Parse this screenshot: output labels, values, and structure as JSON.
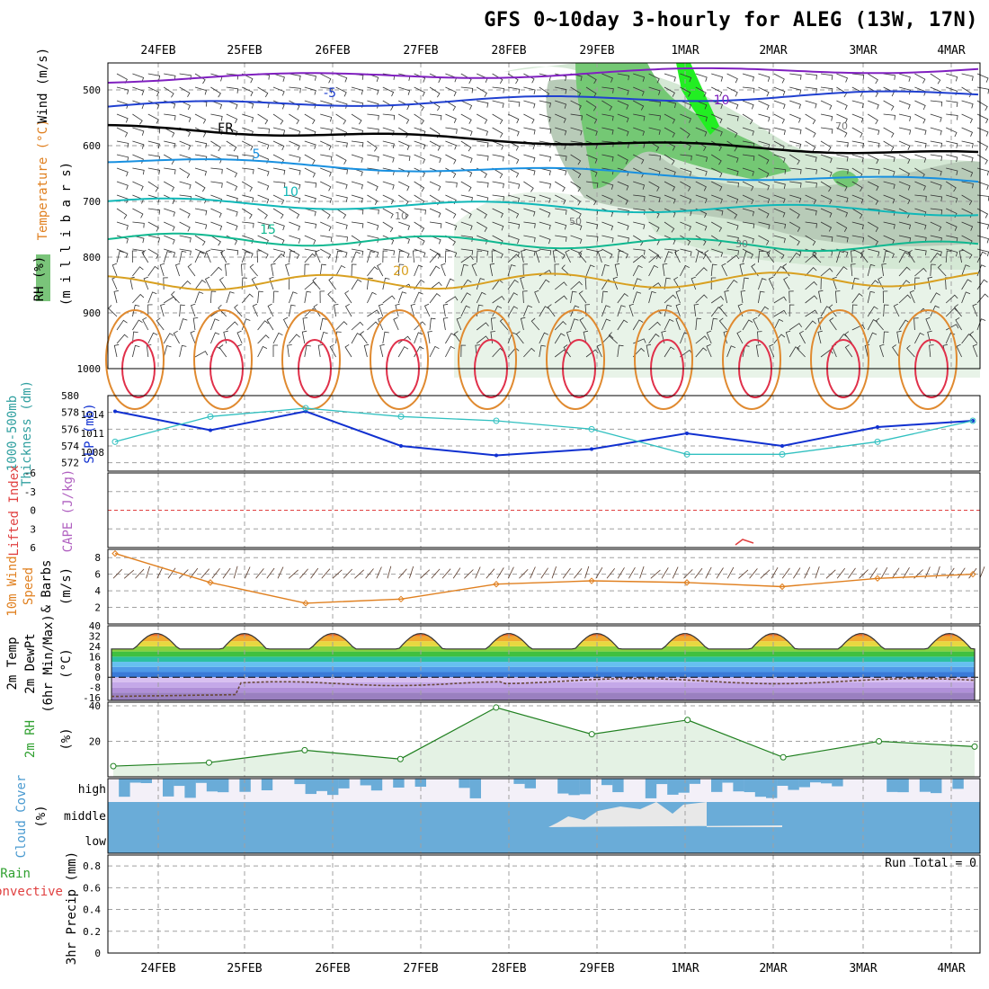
{
  "title": "GFS 0~10day 3-hourly for ALEG (13W, 17N)",
  "dates": [
    "24FEB",
    "25FEB",
    "26FEB",
    "27FEB",
    "28FEB",
    "29FEB",
    "1MAR",
    "2MAR",
    "3MAR",
    "4MAR"
  ],
  "panels": {
    "upper": {
      "labels": [
        "Wind (m/s)",
        "Temperature (°C)",
        "RH (%)",
        "(m i l l i b a r s)"
      ],
      "yticks": [
        "500",
        "600",
        "700",
        "800",
        "900",
        "1000"
      ],
      "temp_contours": [
        {
          "label": "-10",
          "color": "#8020c0"
        },
        {
          "label": "-5",
          "color": "#2040d0"
        },
        {
          "label": "FR",
          "color": "#000000"
        },
        {
          "label": "5",
          "color": "#1890e0"
        },
        {
          "label": "10",
          "color": "#10b8b8"
        },
        {
          "label": "15",
          "color": "#10b890"
        },
        {
          "label": "20",
          "color": "#d8a020"
        }
      ],
      "rh_labels": [
        "10",
        "50",
        "30",
        "70"
      ]
    },
    "slp": {
      "labels": [
        "1000-500mb",
        "Thickness (dm)",
        "SLP (mb)"
      ],
      "left_ticks": [
        "580",
        "578",
        "576",
        "574",
        "572"
      ],
      "right_ticks": [
        "1014",
        "1011",
        "1008"
      ]
    },
    "cape": {
      "labels": [
        "Lifted Index",
        "CAPE (J/kg)"
      ],
      "yticks": [
        "-6",
        "-3",
        "0",
        "3",
        "6"
      ]
    },
    "wind10m": {
      "labels": [
        "10m Wind",
        "Speed",
        "& Barbs",
        "(m/s)"
      ],
      "yticks": [
        "8",
        "6",
        "4",
        "2"
      ]
    },
    "temp2m": {
      "labels": [
        "2m Temp",
        "2m DewPt",
        "(6hr Min/Max)",
        "(°C)"
      ],
      "yticks": [
        "40",
        "32",
        "24",
        "16",
        "8",
        "0",
        "-8",
        "-16"
      ]
    },
    "rh2m": {
      "labels": [
        "2m RH",
        "(%)"
      ],
      "yticks": [
        "40",
        "20"
      ]
    },
    "cloud": {
      "labels": [
        "Cloud Cover",
        "(%)"
      ],
      "levels": [
        "high",
        "middle",
        "low"
      ]
    },
    "precip": {
      "labels": [
        "Total / Rain",
        "Convective",
        "3hr Precip (mm)"
      ],
      "yticks": [
        "0.8",
        "0.6",
        "0.4",
        "0.2",
        "0"
      ],
      "run_total": "Run Total = 0"
    }
  },
  "chart_data": [
    {
      "type": "line",
      "panel": "1000-500mb Thickness (dm) and SLP (mb)",
      "x": [
        "24FEB",
        "25FEB",
        "26FEB",
        "27FEB",
        "28FEB",
        "29FEB",
        "1MAR",
        "2MAR",
        "3MAR",
        "4MAR"
      ],
      "series": [
        {
          "name": "SLP (mb)",
          "color": "#1030d0",
          "values": [
            1014.5,
            1011.5,
            1014.5,
            1009,
            1007.5,
            1008.5,
            1011,
            1009,
            1012,
            1013
          ]
        },
        {
          "name": "1000-500mb Thickness (dm)",
          "color": "#30c0c0",
          "values": [
            574.5,
            577.5,
            578.5,
            577.5,
            577,
            576,
            573,
            573,
            574.5,
            577
          ]
        }
      ],
      "ylim_left": [
        571,
        580
      ],
      "ylim_right": [
        1005,
        1017
      ]
    },
    {
      "type": "line",
      "panel": "10m Wind Speed (m/s)",
      "x": [
        "24FEB",
        "25FEB",
        "26FEB",
        "27FEB",
        "28FEB",
        "29FEB",
        "1MAR",
        "2MAR",
        "3MAR",
        "4MAR"
      ],
      "series": [
        {
          "name": "10m Wind Speed",
          "color": "#e08020",
          "values": [
            8.5,
            5,
            2.5,
            3,
            4.8,
            5.2,
            5,
            4.5,
            5.5,
            6
          ]
        }
      ],
      "ylim": [
        0,
        9
      ]
    },
    {
      "type": "area",
      "panel": "2m Temp (°C)",
      "x": [
        "24FEB",
        "25FEB",
        "26FEB",
        "27FEB",
        "28FEB",
        "29FEB",
        "1MAR",
        "2MAR",
        "3MAR",
        "4MAR"
      ],
      "series": [
        {
          "name": "2m Temp",
          "values": [
            23,
            33,
            33,
            33,
            35,
            35,
            33,
            33,
            33,
            34
          ]
        },
        {
          "name": "2m DewPt",
          "values": [
            -15,
            -14,
            -5,
            -5,
            -3,
            0,
            -2,
            -3,
            -3,
            -4
          ]
        }
      ],
      "ylim": [
        -18,
        40
      ]
    },
    {
      "type": "area",
      "panel": "2m RH (%)",
      "x": [
        "24FEB",
        "25FEB",
        "26FEB",
        "27FEB",
        "28FEB",
        "29FEB",
        "1MAR",
        "2MAR",
        "3MAR",
        "4MAR"
      ],
      "series": [
        {
          "name": "2m RH",
          "color": "#208020",
          "values": [
            6,
            8,
            15,
            10,
            39,
            24,
            32,
            11,
            20,
            17
          ]
        }
      ],
      "ylim": [
        0,
        42
      ]
    },
    {
      "type": "bar",
      "panel": "3hr Precip (mm)",
      "x": [
        "24FEB",
        "25FEB",
        "26FEB",
        "27FEB",
        "28FEB",
        "29FEB",
        "1MAR",
        "2MAR",
        "3MAR",
        "4MAR"
      ],
      "series": [
        {
          "name": "Total / Rain",
          "values": [
            0,
            0,
            0,
            0,
            0,
            0,
            0,
            0,
            0,
            0
          ]
        },
        {
          "name": "Convective",
          "values": [
            0,
            0,
            0,
            0,
            0,
            0,
            0,
            0,
            0,
            0
          ]
        }
      ],
      "ylim": [
        0,
        0.9
      ]
    }
  ]
}
